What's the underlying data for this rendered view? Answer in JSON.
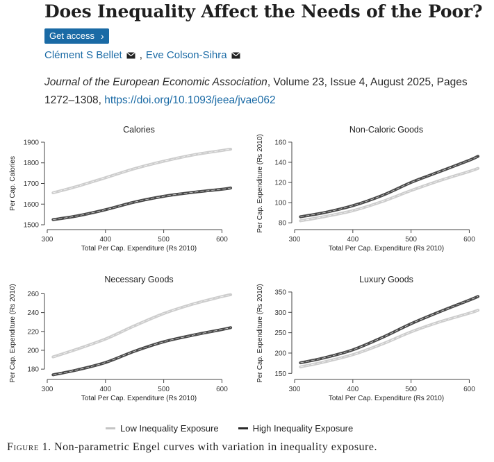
{
  "title": "Does Inequality Affect the Needs of the Poor?",
  "get_access": "Get access",
  "authors": [
    {
      "name": "Clément S Bellet"
    },
    {
      "name": "Eve Colson-Sihra"
    }
  ],
  "author_separator": ",",
  "journal": {
    "name": "Journal of the European Economic Association",
    "details": ", Volume 23, Issue 4, August 2025, Pages 1272–1308, ",
    "doi": "https://doi.org/10.1093/jeea/jvae062"
  },
  "colors": {
    "link": "#1a6aa5",
    "low": "#c4c4c4",
    "high": "#2a2a2a"
  },
  "legend": [
    "Low Inequality Exposure",
    "High Inequality Exposure"
  ],
  "caption": {
    "label": "Figure",
    "number": "1.",
    "text": "Non-parametric Engel curves with variation in inequality exposure."
  },
  "chart_data": [
    {
      "type": "line",
      "title": "Calories",
      "xlabel": "Total Per Cap. Expenditure (Rs 2010)",
      "ylabel": "Per Cap. Calories",
      "xlim": [
        300,
        615
      ],
      "ylim": [
        1490,
        1910
      ],
      "xticks": [
        300,
        400,
        500,
        600
      ],
      "yticks": [
        1500,
        1600,
        1700,
        1800,
        1900
      ],
      "series": [
        {
          "name": "Low Inequality Exposure",
          "x": [
            310,
            350,
            400,
            450,
            500,
            550,
            600,
            615
          ],
          "y": [
            1655,
            1685,
            1728,
            1772,
            1808,
            1838,
            1860,
            1866
          ]
        },
        {
          "name": "High Inequality Exposure",
          "x": [
            310,
            350,
            400,
            450,
            500,
            550,
            600,
            615
          ],
          "y": [
            1525,
            1542,
            1573,
            1610,
            1638,
            1657,
            1672,
            1678
          ]
        }
      ]
    },
    {
      "type": "line",
      "title": "Non-Caloric Goods",
      "xlabel": "Total Per Cap. Expenditure (Rs 2010)",
      "ylabel": "Per Cap. Expenditure (Rs 2010)",
      "xlim": [
        300,
        615
      ],
      "ylim": [
        76,
        162
      ],
      "xticks": [
        300,
        400,
        500,
        600
      ],
      "yticks": [
        80,
        100,
        120,
        140,
        160
      ],
      "series": [
        {
          "name": "Low Inequality Exposure",
          "x": [
            310,
            350,
            400,
            450,
            500,
            550,
            600,
            615
          ],
          "y": [
            82,
            86,
            92,
            101,
            112,
            122,
            131,
            134
          ]
        },
        {
          "name": "High Inequality Exposure",
          "x": [
            310,
            350,
            400,
            450,
            500,
            550,
            600,
            615
          ],
          "y": [
            86,
            90,
            97,
            107,
            120,
            131,
            142,
            146
          ]
        }
      ]
    },
    {
      "type": "line",
      "title": "Necessary Goods",
      "xlabel": "Total Per Cap. Expenditure (Rs 2010)",
      "ylabel": "Per Cap. Expenditure (Rs 2010)",
      "xlim": [
        300,
        615
      ],
      "ylim": [
        172,
        264
      ],
      "xticks": [
        300,
        400,
        500,
        600
      ],
      "yticks": [
        180,
        200,
        220,
        240,
        260
      ],
      "series": [
        {
          "name": "Low Inequality Exposure",
          "x": [
            310,
            350,
            400,
            450,
            500,
            550,
            600,
            615
          ],
          "y": [
            193,
            201,
            212,
            226,
            239,
            249,
            257,
            259
          ]
        },
        {
          "name": "High Inequality Exposure",
          "x": [
            310,
            350,
            400,
            450,
            500,
            550,
            600,
            615
          ],
          "y": [
            174,
            179,
            187,
            199,
            209,
            216,
            222,
            224
          ]
        }
      ]
    },
    {
      "type": "line",
      "title": "Luxury Goods",
      "xlabel": "Total Per Cap. Expenditure (Rs 2010)",
      "ylabel": "Per Cap. Expenditure (Rs 2010)",
      "xlim": [
        300,
        615
      ],
      "ylim": [
        142,
        355
      ],
      "xticks": [
        300,
        400,
        500,
        600
      ],
      "yticks": [
        150,
        200,
        250,
        300,
        350
      ],
      "series": [
        {
          "name": "Low Inequality Exposure",
          "x": [
            310,
            350,
            400,
            450,
            500,
            550,
            600,
            615
          ],
          "y": [
            166,
            178,
            196,
            222,
            252,
            277,
            298,
            305
          ]
        },
        {
          "name": "High Inequality Exposure",
          "x": [
            310,
            350,
            400,
            450,
            500,
            550,
            600,
            615
          ],
          "y": [
            176,
            188,
            208,
            238,
            272,
            302,
            330,
            339
          ]
        }
      ]
    }
  ]
}
